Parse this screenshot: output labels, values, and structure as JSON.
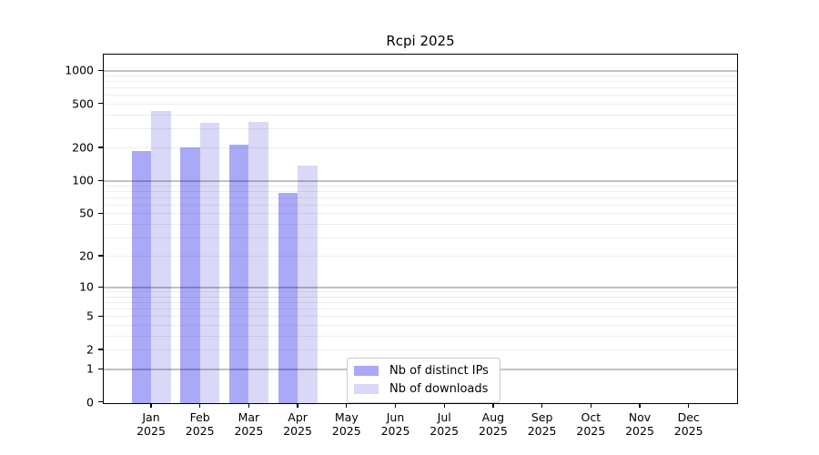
{
  "chart_data": {
    "type": "bar",
    "title": "Rcpi 2025",
    "year": "2025",
    "months": [
      "Jan",
      "Feb",
      "Mar",
      "Apr",
      "May",
      "Jun",
      "Jul",
      "Aug",
      "Sep",
      "Oct",
      "Nov",
      "Dec"
    ],
    "series": [
      {
        "name": "Nb of distinct IPs",
        "color": "#a9a9f7",
        "values": [
          190,
          205,
          215,
          78,
          0,
          0,
          0,
          0,
          0,
          0,
          0,
          0
        ]
      },
      {
        "name": "Nb of downloads",
        "color": "#d9d9f7",
        "values": [
          440,
          340,
          350,
          140,
          0,
          0,
          0,
          0,
          0,
          0,
          0,
          0
        ]
      }
    ],
    "yscale": "log1p",
    "ylim": [
      0,
      1460
    ],
    "ytick_values": [
      0,
      1,
      2,
      5,
      10,
      20,
      50,
      100,
      200,
      500,
      1000
    ],
    "ytick_labels": [
      "0",
      "1",
      "2",
      "5",
      "10",
      "20",
      "50",
      "100",
      "200",
      "500",
      "1000"
    ],
    "major_grid_values": [
      1,
      10,
      100,
      1000
    ],
    "grid": true,
    "legend_position": "bottom-center"
  },
  "colors": {
    "background": "#ffffff",
    "axis": "#000000",
    "grid_major": "rgba(0,0,0,0.24)",
    "grid_minor": "rgba(0,0,0,0.07)",
    "legend_border": "#c9c9c9"
  }
}
